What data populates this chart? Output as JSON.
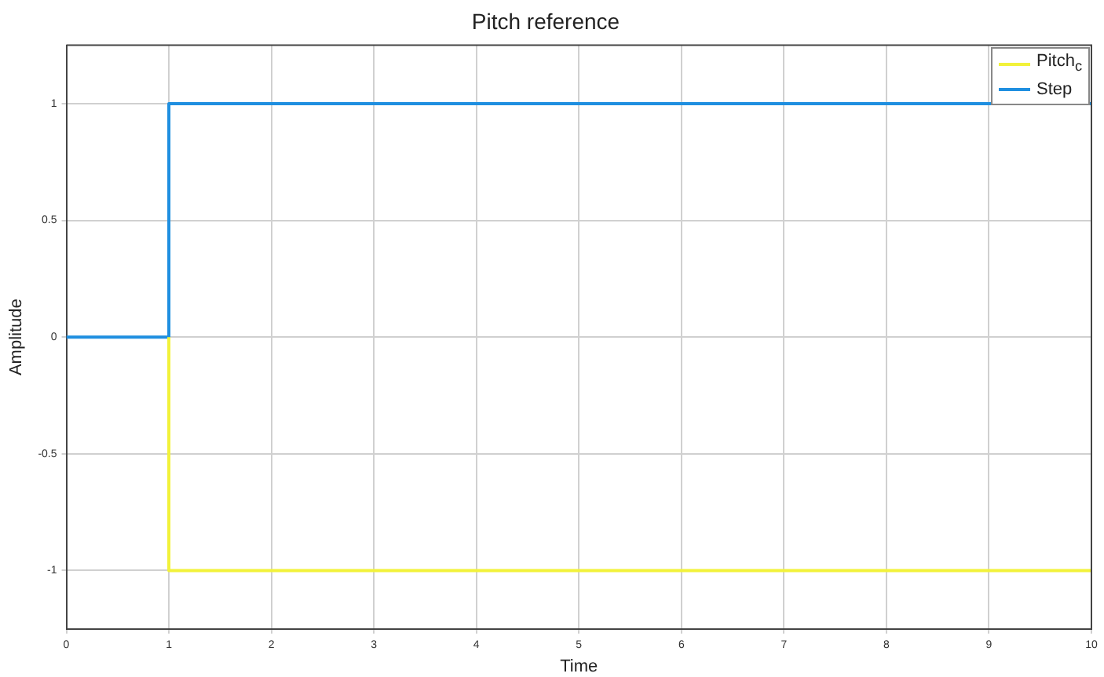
{
  "chart_data": {
    "type": "step",
    "title": "Pitch reference",
    "xlabel": "Time",
    "ylabel": "Amplitude",
    "xlim": [
      0,
      10
    ],
    "xticks": [
      0,
      1,
      2,
      3,
      4,
      5,
      6,
      7,
      8,
      9,
      10
    ],
    "ylim": [
      -1.25,
      1.25
    ],
    "yticks": [
      -1,
      -0.5,
      0,
      0.5,
      1
    ],
    "grid": true,
    "legend": "top right",
    "marker": "none",
    "line_style": "solid",
    "series": [
      {
        "name": "Pitch$_{c}$",
        "color": "#f2f23a",
        "x": [
          1,
          1,
          10
        ],
        "values": [
          0,
          -1,
          -1
        ]
      },
      {
        "name": "Step",
        "color": "#1f8fe0",
        "x": [
          0,
          1,
          10
        ],
        "values": [
          0,
          1,
          1
        ]
      }
    ]
  }
}
